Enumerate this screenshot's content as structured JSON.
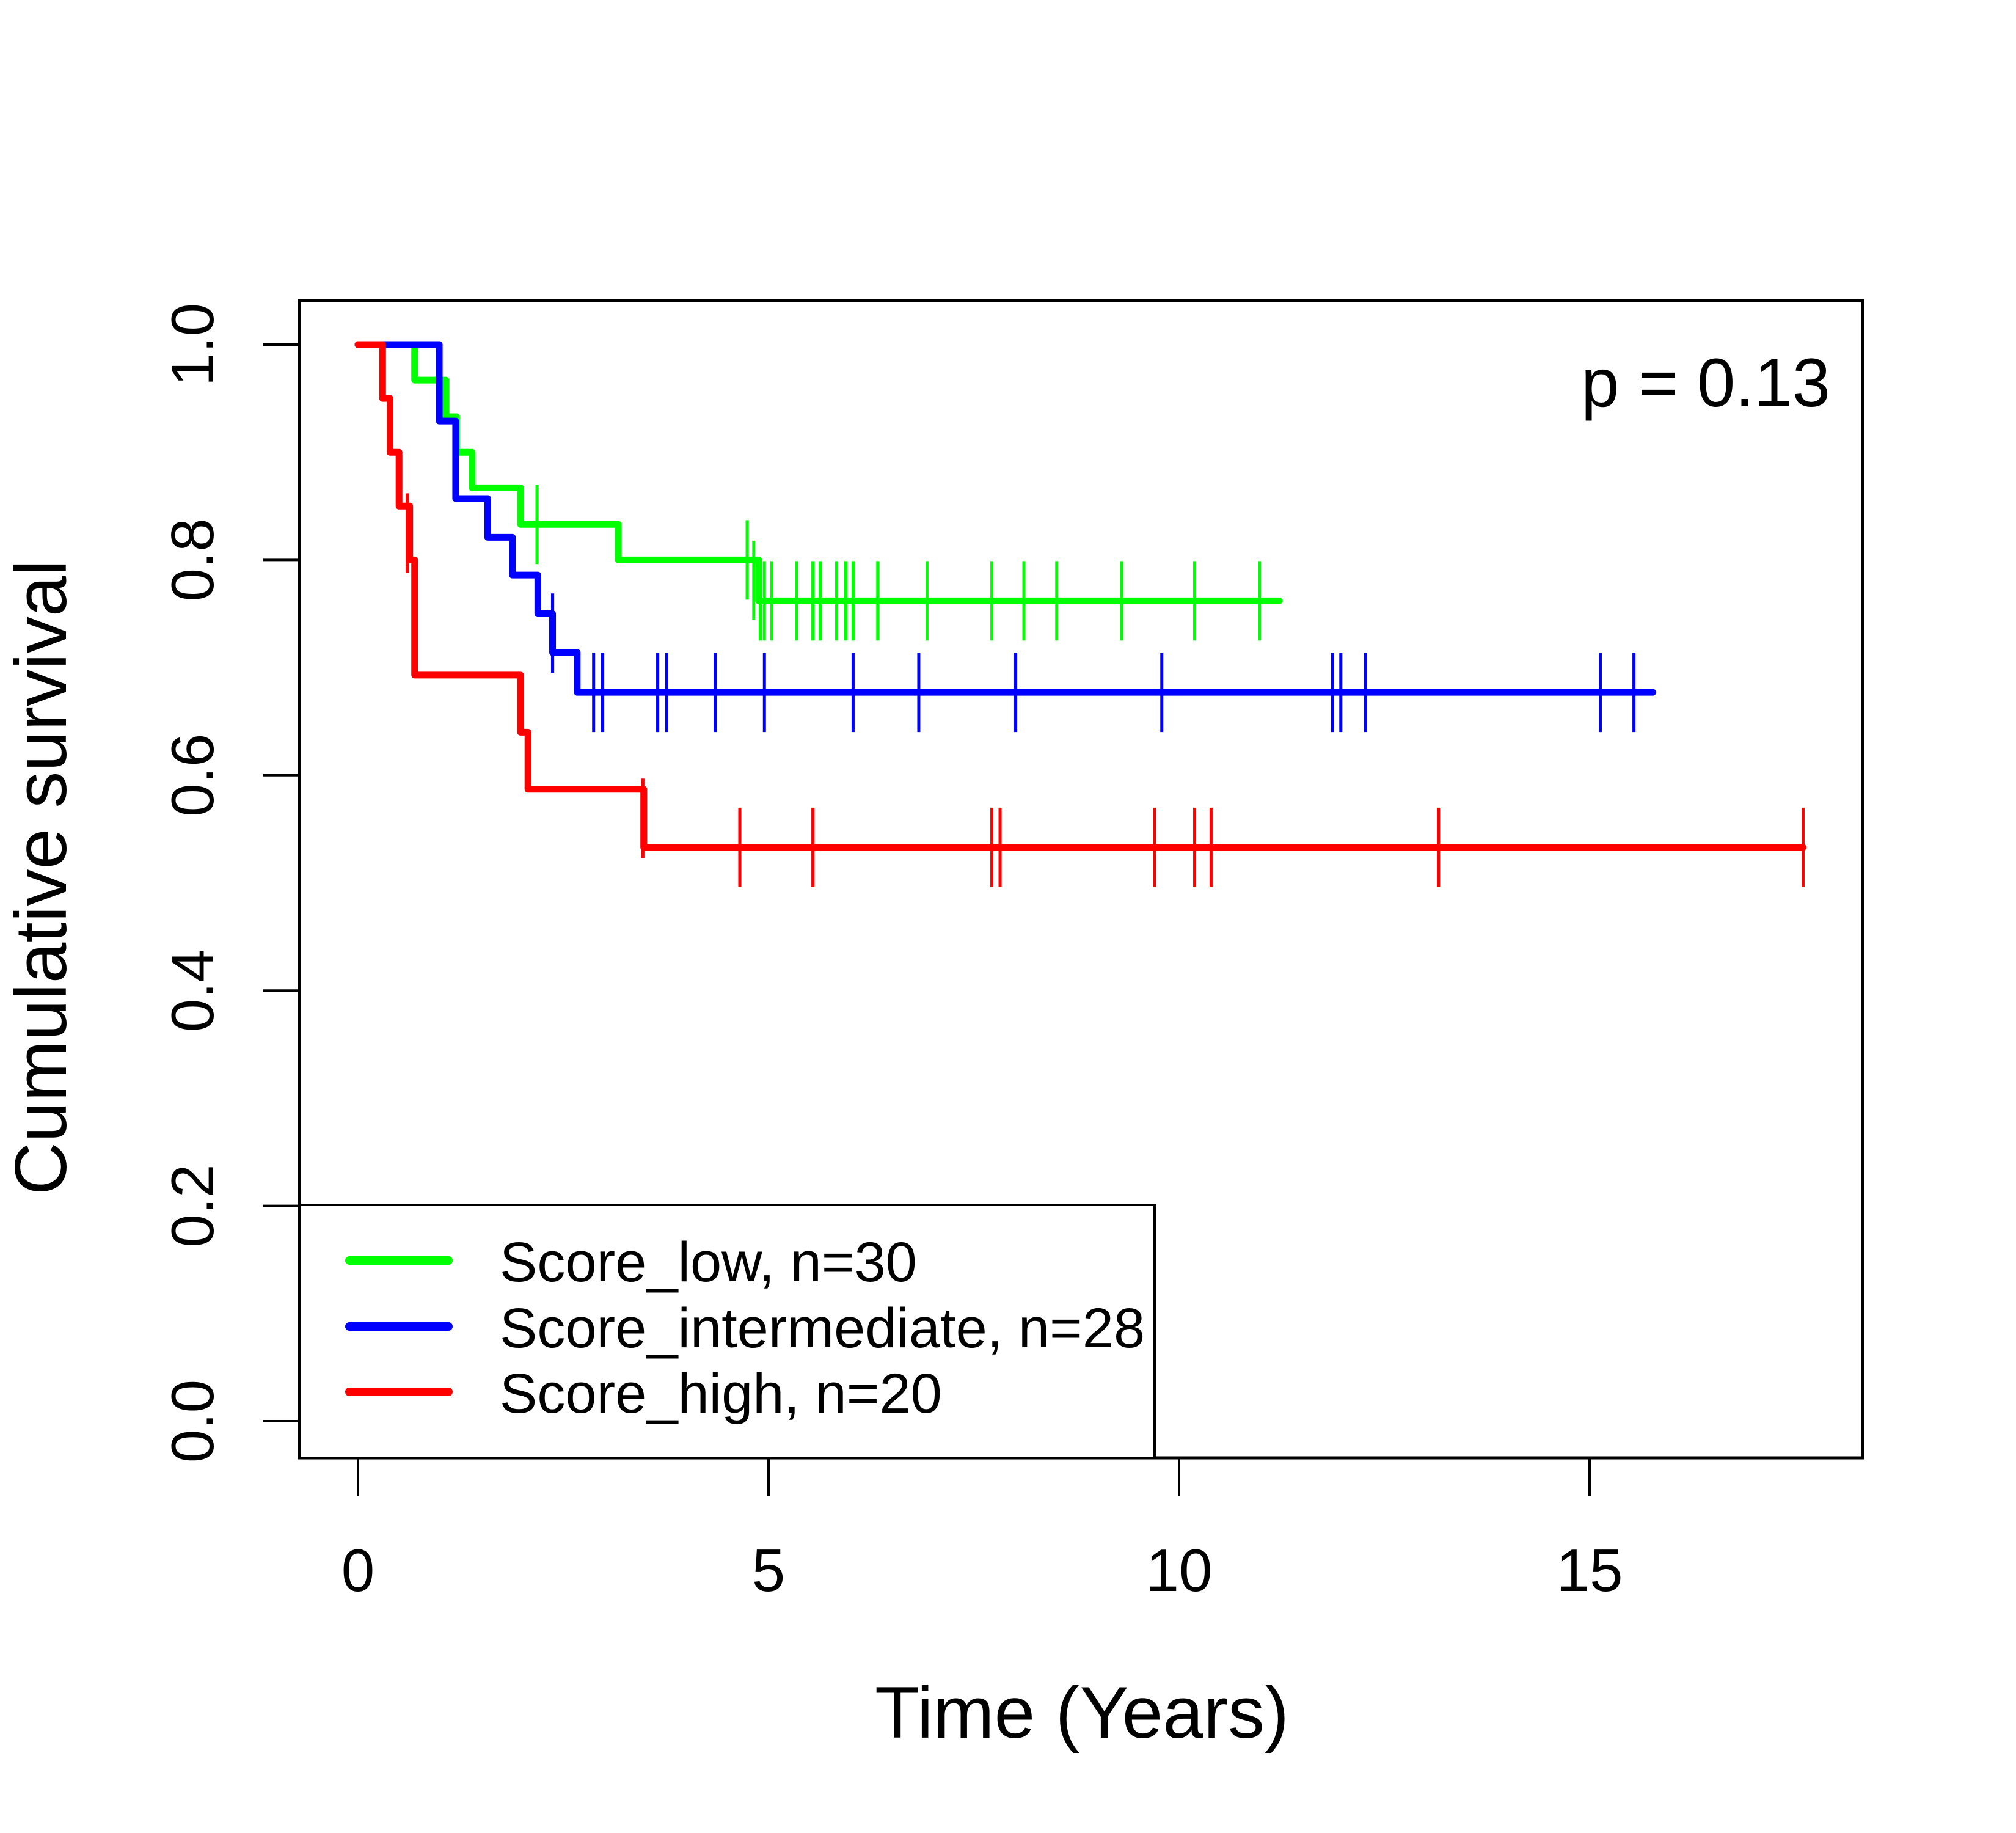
{
  "chart_data": {
    "type": "line",
    "subtype": "kaplan-meier",
    "title": "",
    "xlabel": "Time (Years)",
    "ylabel": "Cumulative survival",
    "xlim": [
      -0.71,
      18.5
    ],
    "ylim": [
      -0.04,
      1.04
    ],
    "xticks": [
      0,
      5,
      10,
      15
    ],
    "xtick_labels": [
      "0",
      "5",
      "10",
      "15"
    ],
    "yticks": [
      0.0,
      0.2,
      0.4,
      0.6,
      0.8,
      1.0
    ],
    "ytick_labels": [
      "0.0",
      "0.2",
      "0.4",
      "0.6",
      "0.8",
      "1.0"
    ],
    "grid": false,
    "annotation": "p = 0.13",
    "annotation_position": "top-right",
    "legend_position": "bottom-left",
    "series": [
      {
        "name": "Score_low, n=30",
        "color": "#00ff00",
        "end_time": 11.22,
        "steps": [
          [
            0,
            1.0
          ],
          [
            0.69,
            0.967
          ],
          [
            1.07,
            0.933
          ],
          [
            1.2,
            0.9
          ],
          [
            1.39,
            0.867
          ],
          [
            1.98,
            0.833
          ],
          [
            3.17,
            0.8
          ],
          [
            4.88,
            0.762
          ]
        ],
        "censored": [
          [
            2.18,
            0.833
          ],
          [
            4.74,
            0.8
          ],
          [
            4.82,
            0.781
          ],
          [
            4.9,
            0.762
          ],
          [
            4.95,
            0.762
          ],
          [
            5.04,
            0.762
          ],
          [
            5.34,
            0.762
          ],
          [
            5.54,
            0.762
          ],
          [
            5.63,
            0.762
          ],
          [
            5.83,
            0.762
          ],
          [
            5.94,
            0.762
          ],
          [
            6.03,
            0.762
          ],
          [
            6.33,
            0.762
          ],
          [
            6.93,
            0.762
          ],
          [
            7.72,
            0.762
          ],
          [
            8.11,
            0.762
          ],
          [
            8.51,
            0.762
          ],
          [
            9.3,
            0.762
          ],
          [
            10.19,
            0.762
          ],
          [
            10.98,
            0.762
          ]
        ]
      },
      {
        "name": "Score_intermediate, n=28",
        "color": "#0000ff",
        "end_time": 15.77,
        "steps": [
          [
            0,
            1.0
          ],
          [
            0.99,
            0.929
          ],
          [
            1.19,
            0.857
          ],
          [
            1.58,
            0.821
          ],
          [
            1.88,
            0.786
          ],
          [
            2.19,
            0.75
          ],
          [
            2.37,
            0.714
          ],
          [
            2.67,
            0.677
          ]
        ],
        "censored": [
          [
            2.37,
            0.732
          ],
          [
            2.87,
            0.677
          ],
          [
            2.98,
            0.677
          ],
          [
            3.65,
            0.677
          ],
          [
            3.76,
            0.677
          ],
          [
            4.35,
            0.677
          ],
          [
            4.95,
            0.677
          ],
          [
            6.03,
            0.677
          ],
          [
            6.83,
            0.677
          ],
          [
            8.01,
            0.677
          ],
          [
            9.79,
            0.677
          ],
          [
            11.87,
            0.677
          ],
          [
            11.97,
            0.677
          ],
          [
            12.27,
            0.677
          ],
          [
            15.13,
            0.677
          ],
          [
            15.54,
            0.677
          ]
        ]
      },
      {
        "name": "Score_high, n=20",
        "color": "#ff0000",
        "end_time": 17.6,
        "steps": [
          [
            0,
            1.0
          ],
          [
            0.3,
            0.95
          ],
          [
            0.39,
            0.9
          ],
          [
            0.5,
            0.85
          ],
          [
            0.63,
            0.8
          ],
          [
            0.69,
            0.693
          ],
          [
            1.98,
            0.64
          ],
          [
            2.07,
            0.587
          ],
          [
            3.48,
            0.533
          ]
        ],
        "censored": [
          [
            0.6,
            0.825
          ],
          [
            3.47,
            0.56
          ],
          [
            4.65,
            0.533
          ],
          [
            5.54,
            0.533
          ],
          [
            7.72,
            0.533
          ],
          [
            7.82,
            0.533
          ],
          [
            9.7,
            0.533
          ],
          [
            10.19,
            0.533
          ],
          [
            10.39,
            0.533
          ],
          [
            13.16,
            0.533
          ],
          [
            17.6,
            0.533
          ]
        ]
      }
    ]
  }
}
